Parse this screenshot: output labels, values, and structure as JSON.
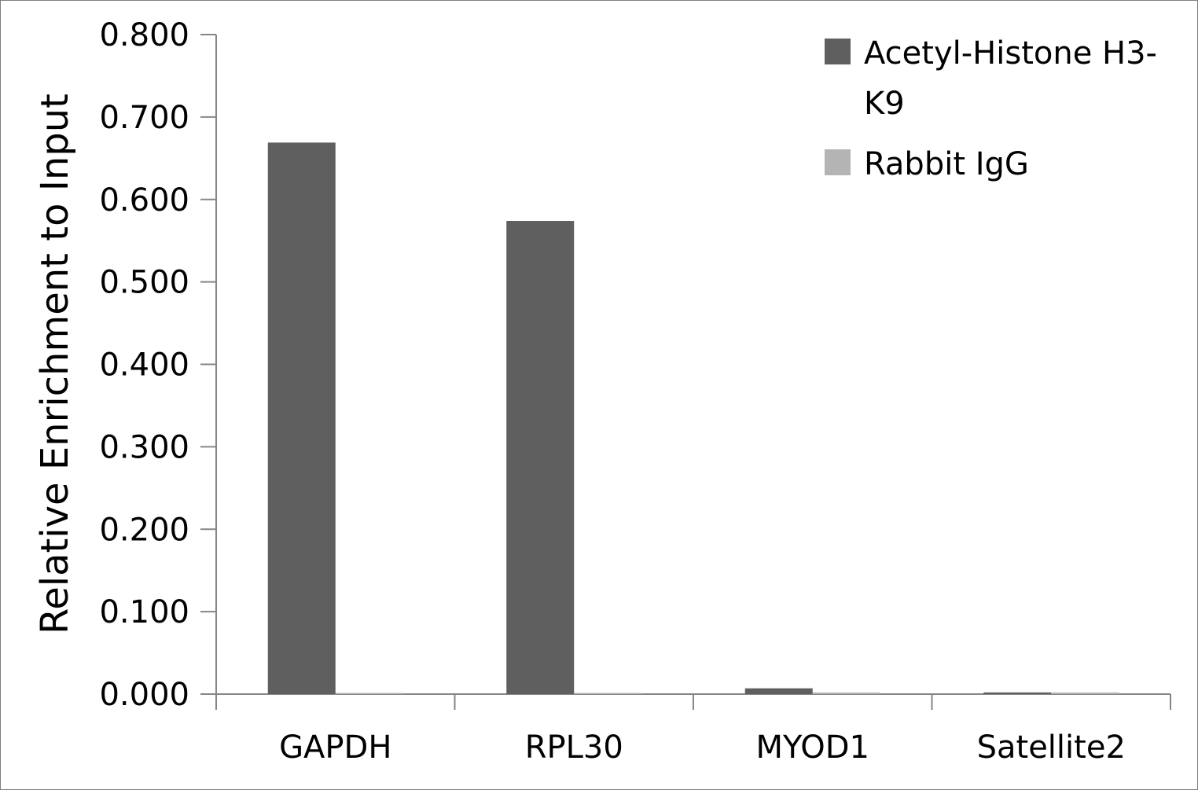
{
  "chart_data": {
    "type": "bar",
    "categories": [
      "GAPDH",
      "RPL30",
      "MYOD1",
      "Satellite2"
    ],
    "series": [
      {
        "name": "Acetyl-Histone H3-K9",
        "legend_lines": [
          "Acetyl-Histone H3-",
          "K9"
        ],
        "color": "#5f5f5f",
        "values": [
          0.669,
          0.574,
          0.007,
          0.002
        ]
      },
      {
        "name": "Rabbit IgG",
        "legend_lines": [
          "Rabbit IgG"
        ],
        "color": "#b4b4b4",
        "values": [
          0.001,
          0.001,
          0.002,
          0.002
        ]
      }
    ],
    "title": "",
    "xlabel": "",
    "ylabel": "Relative Enrichment to Input",
    "ylim": [
      0,
      0.8
    ],
    "yticks": [
      "0.000",
      "0.100",
      "0.200",
      "0.300",
      "0.400",
      "0.500",
      "0.600",
      "0.700",
      "0.800"
    ],
    "ytick_values": [
      0,
      0.1,
      0.2,
      0.3,
      0.4,
      0.5,
      0.6,
      0.7,
      0.8
    ],
    "grid": false,
    "legend": "top-right"
  }
}
